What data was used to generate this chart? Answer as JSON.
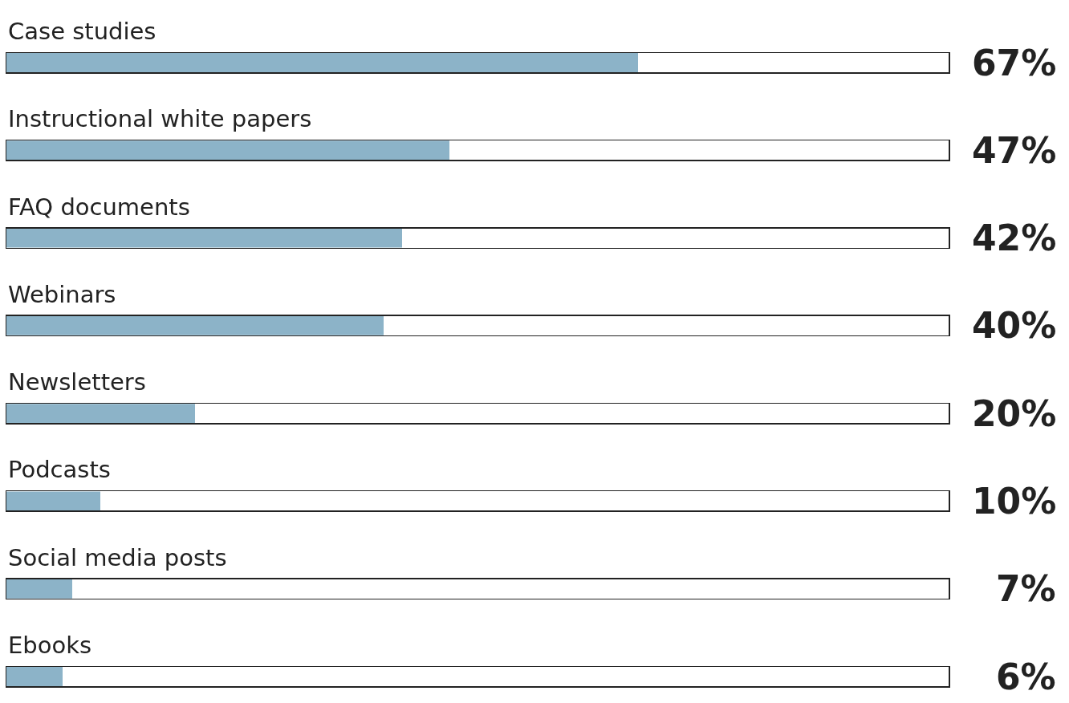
{
  "chart_data": {
    "type": "bar",
    "orientation": "horizontal",
    "categories": [
      "Case studies",
      "Instructional white papers",
      "FAQ documents",
      "Webinars",
      "Newsletters",
      "Podcasts",
      "Social media posts",
      "Ebooks"
    ],
    "values": [
      67,
      47,
      42,
      40,
      20,
      10,
      7,
      6
    ],
    "value_labels": [
      "67%",
      "47%",
      "42%",
      "40%",
      "20%",
      "10%",
      "7%",
      "6%"
    ],
    "color": "#8cb3c8",
    "xlim": [
      0,
      100
    ],
    "tick_labels": false
  }
}
